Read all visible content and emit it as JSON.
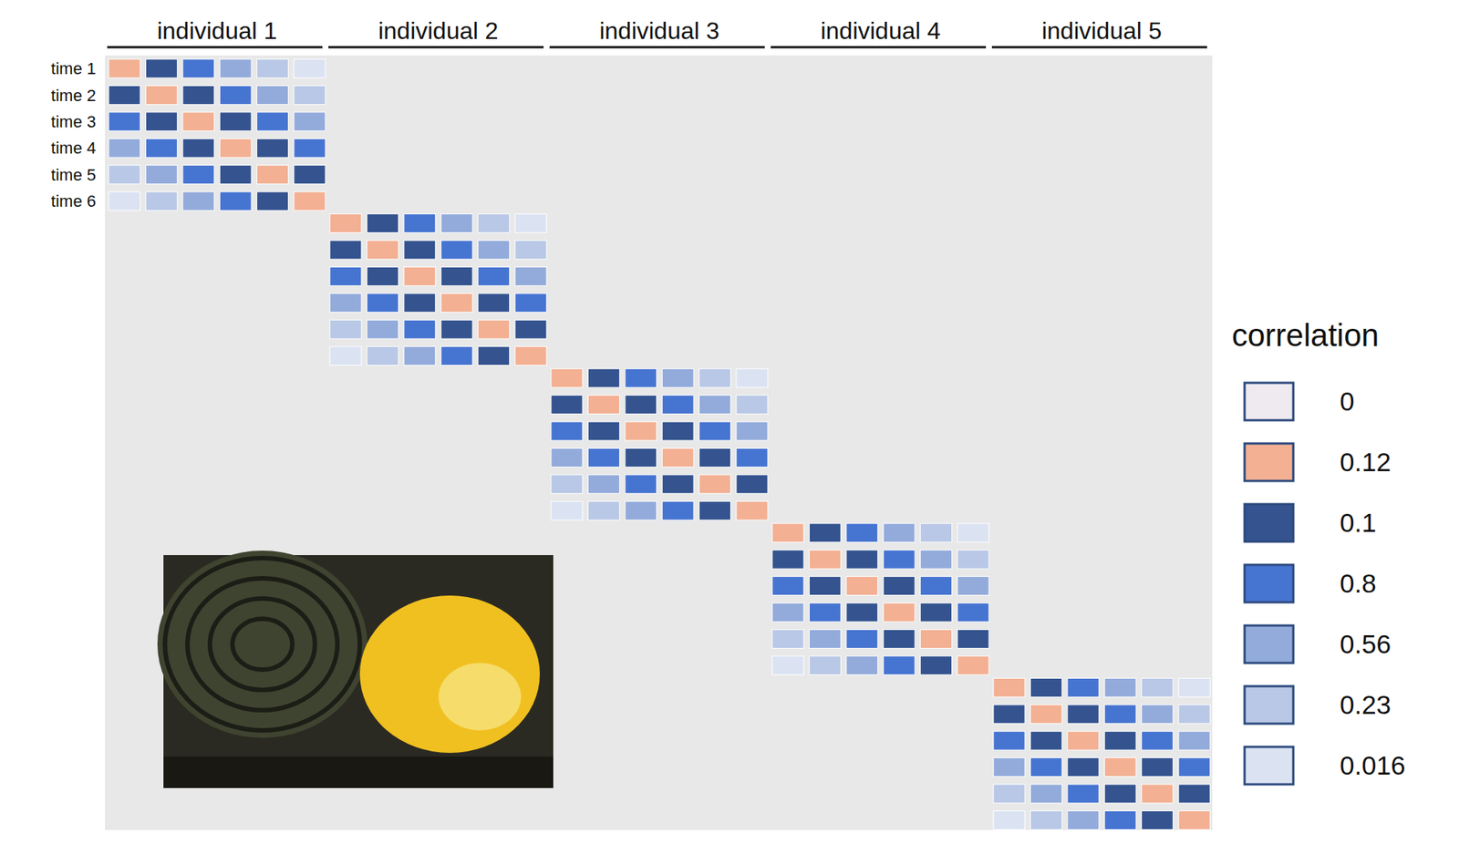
{
  "chart_data": {
    "type": "heatmap",
    "row_labels": [
      "time 1",
      "time 2",
      "time 3",
      "time 4",
      "time 5",
      "time 6"
    ],
    "blocks": [
      {
        "name": "individual 1",
        "cells": [
          [
            0.12,
            0.1,
            0.8,
            0.56,
            0.23,
            0.016
          ],
          [
            0.1,
            0.12,
            0.1,
            0.8,
            0.56,
            0.23
          ],
          [
            0.8,
            0.1,
            0.12,
            0.1,
            0.8,
            0.56
          ],
          [
            0.56,
            0.8,
            0.1,
            0.12,
            0.1,
            0.8
          ],
          [
            0.23,
            0.56,
            0.8,
            0.1,
            0.12,
            0.1
          ],
          [
            0.016,
            0.23,
            0.56,
            0.8,
            0.1,
            0.12
          ]
        ]
      },
      {
        "name": "individual 2",
        "cells": [
          [
            0.12,
            0.1,
            0.8,
            0.56,
            0.23,
            0.016
          ],
          [
            0.1,
            0.12,
            0.1,
            0.8,
            0.56,
            0.23
          ],
          [
            0.8,
            0.1,
            0.12,
            0.1,
            0.8,
            0.56
          ],
          [
            0.56,
            0.8,
            0.1,
            0.12,
            0.1,
            0.8
          ],
          [
            0.23,
            0.56,
            0.8,
            0.1,
            0.12,
            0.1
          ],
          [
            0.016,
            0.23,
            0.56,
            0.8,
            0.1,
            0.12
          ]
        ]
      },
      {
        "name": "individual 3",
        "cells": [
          [
            0.12,
            0.1,
            0.8,
            0.56,
            0.23,
            0.016
          ],
          [
            0.1,
            0.12,
            0.1,
            0.8,
            0.56,
            0.23
          ],
          [
            0.8,
            0.1,
            0.12,
            0.1,
            0.8,
            0.56
          ],
          [
            0.56,
            0.8,
            0.1,
            0.12,
            0.1,
            0.8
          ],
          [
            0.23,
            0.56,
            0.8,
            0.1,
            0.12,
            0.1
          ],
          [
            0.016,
            0.23,
            0.56,
            0.8,
            0.1,
            0.12
          ]
        ]
      },
      {
        "name": "individual 4",
        "cells": [
          [
            0.12,
            0.1,
            0.8,
            0.56,
            0.23,
            0.016
          ],
          [
            0.1,
            0.12,
            0.1,
            0.8,
            0.56,
            0.23
          ],
          [
            0.8,
            0.1,
            0.12,
            0.1,
            0.8,
            0.56
          ],
          [
            0.56,
            0.8,
            0.1,
            0.12,
            0.1,
            0.8
          ],
          [
            0.23,
            0.56,
            0.8,
            0.1,
            0.12,
            0.1
          ],
          [
            0.016,
            0.23,
            0.56,
            0.8,
            0.1,
            0.12
          ]
        ]
      },
      {
        "name": "individual 5",
        "cells": [
          [
            0.12,
            0.1,
            0.8,
            0.56,
            0.23,
            0.016
          ],
          [
            0.1,
            0.12,
            0.1,
            0.8,
            0.56,
            0.23
          ],
          [
            0.8,
            0.1,
            0.12,
            0.1,
            0.8,
            0.56
          ],
          [
            0.56,
            0.8,
            0.1,
            0.12,
            0.1,
            0.8
          ],
          [
            0.23,
            0.56,
            0.8,
            0.1,
            0.12,
            0.1
          ],
          [
            0.016,
            0.23,
            0.56,
            0.8,
            0.1,
            0.12
          ]
        ]
      }
    ],
    "colorbar": {
      "title": "correlation",
      "values": [
        0,
        0.12,
        0.1,
        0.8,
        0.56,
        0.23,
        0.016
      ],
      "colors": [
        "#efeaf0",
        "#f3b093",
        "#34538f",
        "#4674d1",
        "#93abdb",
        "#b9c8e6",
        "#dbe3f3"
      ]
    }
  }
}
